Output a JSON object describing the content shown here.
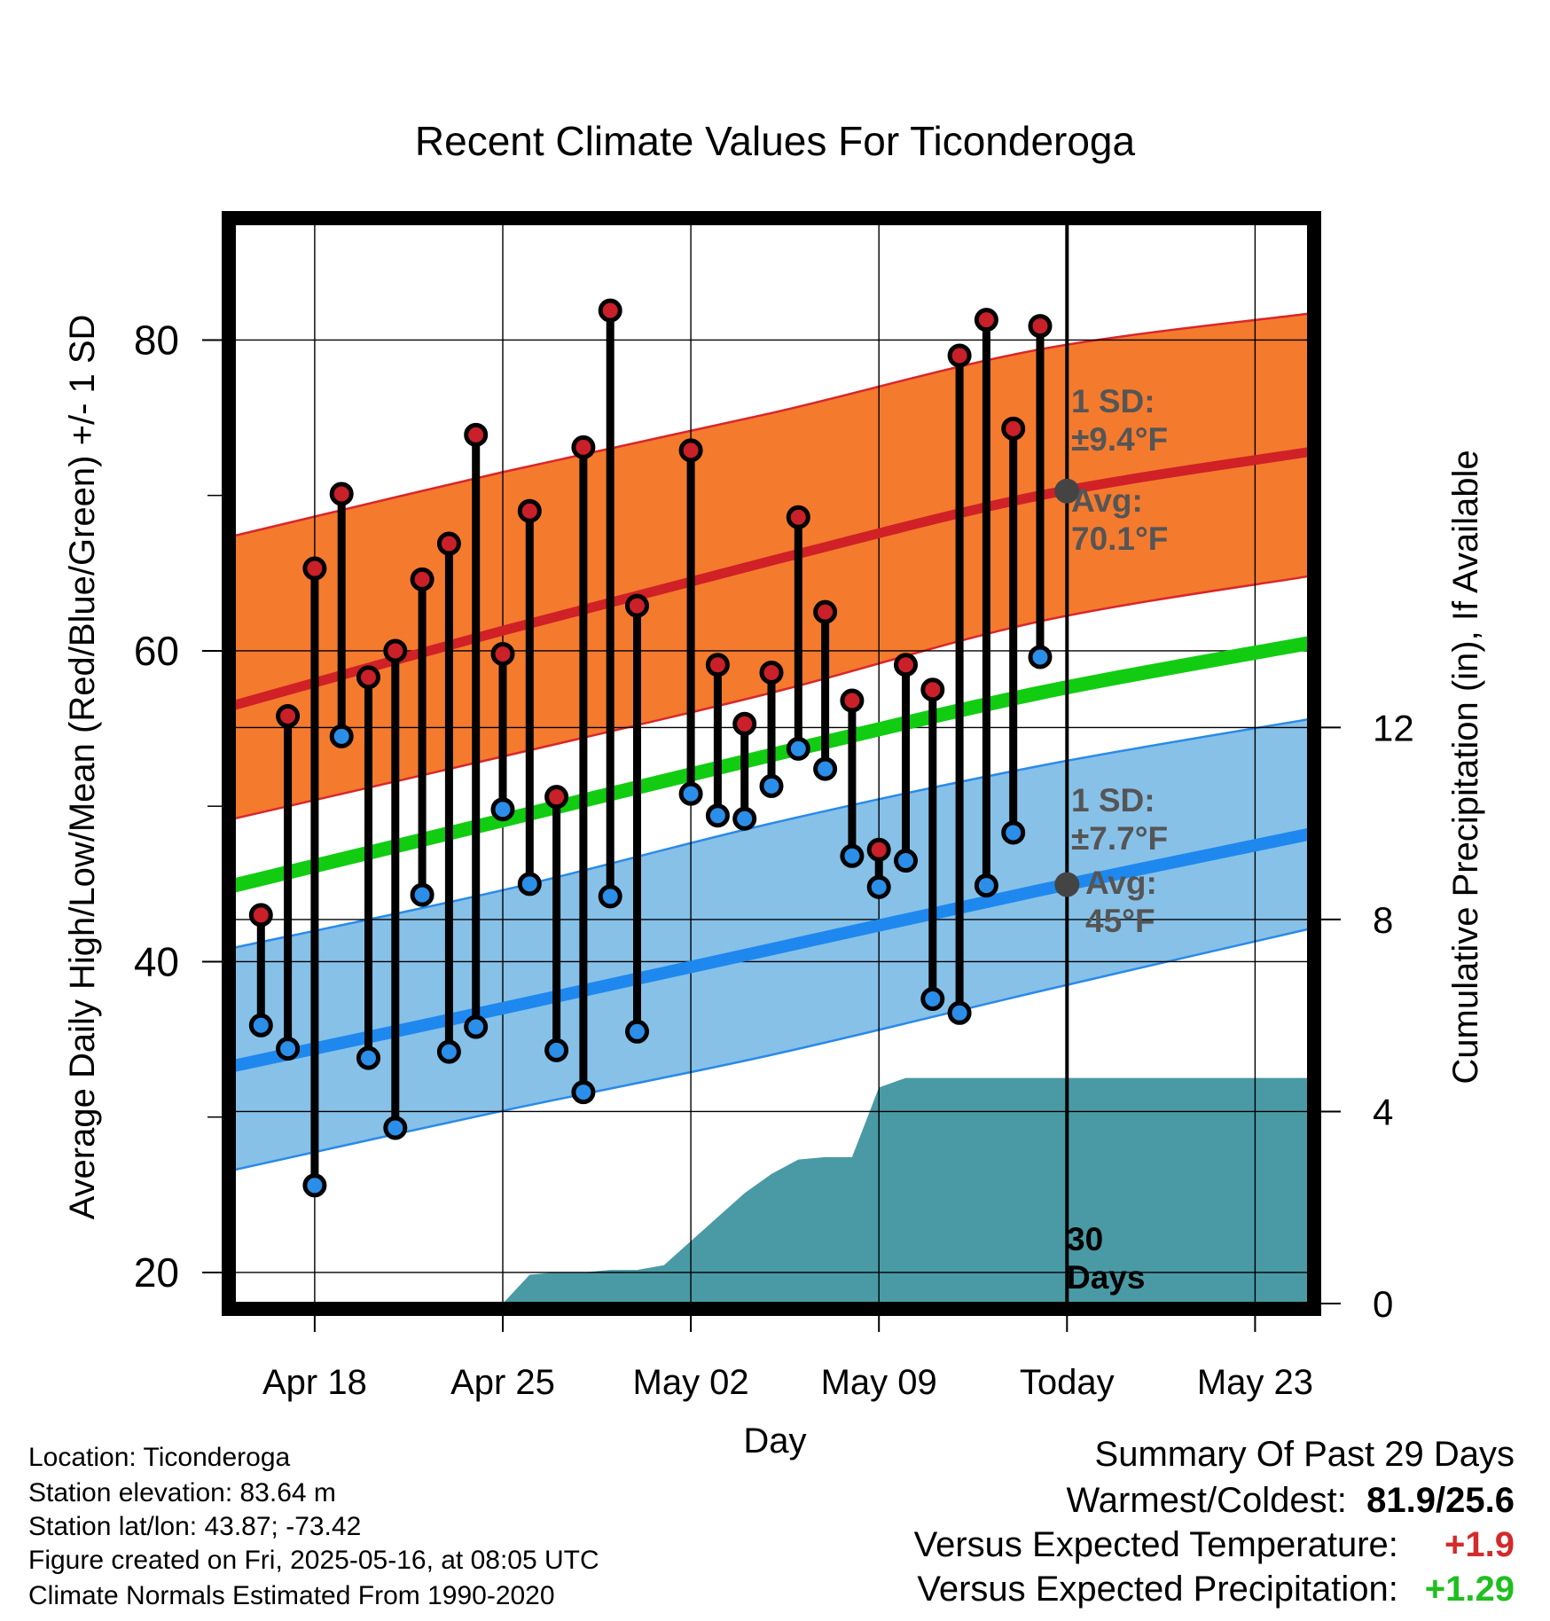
{
  "chart_data": {
    "type": "line",
    "title": "Recent Climate Values For Ticonderoga",
    "xlabel": "Day",
    "ylabel": "Average Daily High/Low/Mean (Red/Blue/Green) +/- 1 SD",
    "y2label": "Cumulative Precipitation (in), If Available",
    "ylim": [
      18,
      87.5
    ],
    "y2lim": [
      0,
      22.5
    ],
    "yticks": [
      20,
      40,
      60,
      80
    ],
    "y2ticks": [
      0,
      4,
      8,
      12
    ],
    "xticks": [
      {
        "x": "2025-04-18",
        "label": "Apr 18"
      },
      {
        "x": "2025-04-25",
        "label": "Apr 25"
      },
      {
        "x": "2025-05-02",
        "label": "May 02"
      },
      {
        "x": "2025-05-09",
        "label": "May 09"
      },
      {
        "x": "2025-05-16",
        "label": "Today"
      },
      {
        "x": "2025-05-23",
        "label": "May 23"
      }
    ],
    "xlim": [
      "2025-04-15",
      "2025-05-25"
    ],
    "grid": true,
    "series": [
      {
        "name": "High",
        "color": "#c9202a",
        "x": [
          "2025-04-16",
          "2025-04-17",
          "2025-04-18",
          "2025-04-19",
          "2025-04-20",
          "2025-04-21",
          "2025-04-22",
          "2025-04-23",
          "2025-04-24",
          "2025-04-25",
          "2025-04-26",
          "2025-04-27",
          "2025-04-28",
          "2025-04-29",
          "2025-04-30",
          "2025-05-02",
          "2025-05-03",
          "2025-05-04",
          "2025-05-05",
          "2025-05-06",
          "2025-05-07",
          "2025-05-08",
          "2025-05-09",
          "2025-05-10",
          "2025-05-11",
          "2025-05-12",
          "2025-05-13",
          "2025-05-14",
          "2025-05-15"
        ],
        "values": [
          43.0,
          55.8,
          65.3,
          70.1,
          58.3,
          60.0,
          64.6,
          66.9,
          73.9,
          59.8,
          69.0,
          50.6,
          73.1,
          81.9,
          62.9,
          72.9,
          59.1,
          55.3,
          58.6,
          68.6,
          62.5,
          56.8,
          47.2,
          59.1,
          57.5,
          79.0,
          81.3,
          74.3,
          80.9
        ]
      },
      {
        "name": "Low",
        "color": "#2b8ee8",
        "x": [
          "2025-04-16",
          "2025-04-17",
          "2025-04-18",
          "2025-04-19",
          "2025-04-20",
          "2025-04-21",
          "2025-04-22",
          "2025-04-23",
          "2025-04-24",
          "2025-04-25",
          "2025-04-26",
          "2025-04-27",
          "2025-04-28",
          "2025-04-29",
          "2025-04-30",
          "2025-05-02",
          "2025-05-03",
          "2025-05-04",
          "2025-05-05",
          "2025-05-06",
          "2025-05-07",
          "2025-05-08",
          "2025-05-09",
          "2025-05-10",
          "2025-05-11",
          "2025-05-12",
          "2025-05-13",
          "2025-05-14",
          "2025-05-15"
        ],
        "values": [
          35.9,
          34.4,
          25.6,
          54.5,
          33.8,
          29.3,
          44.3,
          34.2,
          35.8,
          49.8,
          45.0,
          34.3,
          31.6,
          44.2,
          35.5,
          50.8,
          49.4,
          49.2,
          51.3,
          53.7,
          52.4,
          46.8,
          44.8,
          46.5,
          37.6,
          36.7,
          44.9,
          48.3,
          59.6
        ]
      },
      {
        "name": "Normal High",
        "color": "#cf2126",
        "x": [
          "2025-04-15",
          "2025-04-25",
          "2025-05-05",
          "2025-05-15",
          "2025-05-25"
        ],
        "values": [
          56.5,
          61.3,
          65.8,
          70.0,
          72.8
        ]
      },
      {
        "name": "Normal Low",
        "color": "#1e88ee",
        "x": [
          "2025-04-15",
          "2025-04-25",
          "2025-05-05",
          "2025-05-15",
          "2025-05-25"
        ],
        "values": [
          33.3,
          37.0,
          40.8,
          44.6,
          48.2
        ]
      },
      {
        "name": "Normal Mean",
        "color": "#12cc12",
        "x": [
          "2025-04-15",
          "2025-04-25",
          "2025-05-05",
          "2025-05-15",
          "2025-05-25"
        ],
        "values": [
          44.9,
          49.1,
          53.3,
          57.3,
          60.5
        ]
      },
      {
        "name": "High +/- 1 SD",
        "color": "#f47a2e",
        "x": [
          "2025-04-15",
          "2025-04-25",
          "2025-05-05",
          "2025-05-15",
          "2025-05-25"
        ],
        "upper": [
          67.4,
          71.5,
          75.3,
          79.4,
          81.7
        ],
        "lower": [
          49.2,
          53.2,
          57.3,
          61.9,
          64.8
        ]
      },
      {
        "name": "Low +/- 1 SD",
        "color": "#87c1e8",
        "x": [
          "2025-04-15",
          "2025-04-25",
          "2025-05-05",
          "2025-05-15",
          "2025-05-25"
        ],
        "upper": [
          40.9,
          44.6,
          48.9,
          52.6,
          55.6
        ],
        "lower": [
          26.6,
          30.4,
          34.0,
          38.1,
          42.1
        ]
      },
      {
        "name": "Cumulative Precipitation",
        "color": "#4a9aa5",
        "x": [
          "2025-04-25",
          "2025-04-26",
          "2025-04-27",
          "2025-04-28",
          "2025-04-29",
          "2025-04-30",
          "2025-05-01",
          "2025-05-02",
          "2025-05-03",
          "2025-05-04",
          "2025-05-05",
          "2025-05-06",
          "2025-05-07",
          "2025-05-08",
          "2025-05-09",
          "2025-05-10",
          "2025-05-16",
          "2025-05-25"
        ],
        "values": [
          0,
          0.6,
          0.65,
          0.65,
          0.7,
          0.7,
          0.8,
          1.3,
          1.8,
          2.3,
          2.7,
          3.0,
          3.05,
          3.05,
          4.5,
          4.7,
          4.7,
          4.7
        ]
      }
    ],
    "annotations": [
      {
        "text": [
          "1 SD:",
          "±9.4°F"
        ]
      },
      {
        "text": [
          "Avg:",
          "70.1°F"
        ],
        "value": 70.1
      },
      {
        "text": [
          "1 SD:",
          "±7.7°F"
        ]
      },
      {
        "text": [
          "Avg:",
          "45°F"
        ],
        "value": 45
      },
      {
        "text": [
          "30",
          "Days"
        ]
      }
    ],
    "today_marker": "2025-05-16"
  },
  "info": {
    "location": "Location: Ticonderoga",
    "elevation": "Station elevation: 83.64 m",
    "latlon": "Station lat/lon: 43.87; -73.42",
    "created": "Figure created on Fri, 2025-05-16, at 08:05 UTC",
    "normals": "Climate Normals Estimated From 1990-2020"
  },
  "summary": {
    "heading": "Summary Of Past 29 Days",
    "warm_cold_label": "Warmest/Coldest:",
    "warm_cold_value": "81.9/25.6",
    "temp_label": "Versus Expected Temperature:",
    "temp_value": "+1.9",
    "temp_color": "#d42a2a",
    "precip_label": "Versus Expected Precipitation:",
    "precip_value": "+1.29",
    "precip_color": "#1fbf1f"
  }
}
